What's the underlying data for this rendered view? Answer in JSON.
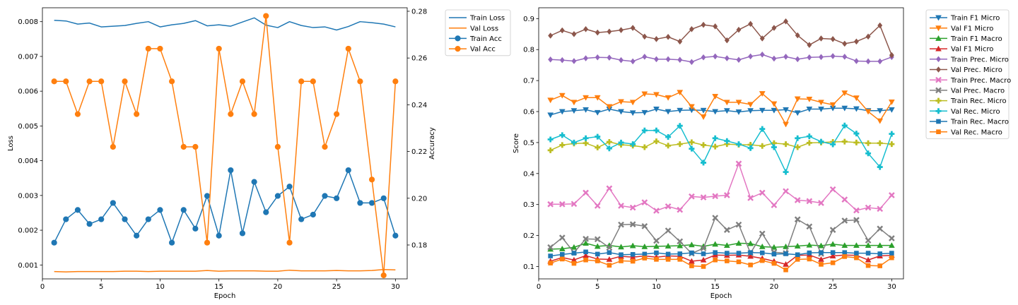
{
  "chart_data": [
    {
      "type": "line",
      "x": [
        1,
        2,
        3,
        4,
        5,
        6,
        7,
        8,
        9,
        10,
        11,
        12,
        13,
        14,
        15,
        16,
        17,
        18,
        19,
        20,
        21,
        22,
        23,
        24,
        25,
        26,
        27,
        28,
        29,
        30
      ],
      "xlabel": "Epoch",
      "xlim": [
        0,
        31
      ],
      "xticks": [
        0,
        5,
        10,
        15,
        20,
        25,
        30
      ],
      "ylabel": "Loss",
      "ylim": [
        0.0006,
        0.0084
      ],
      "yticks": [
        0.001,
        0.002,
        0.003,
        0.004,
        0.005,
        0.006,
        0.007,
        0.008
      ],
      "y2label": "Accuracy",
      "y2lim": [
        0.1655,
        0.2815
      ],
      "y2ticks": [
        0.18,
        0.2,
        0.22,
        0.24,
        0.26,
        0.28
      ],
      "legend_placement": "outside-right-top",
      "series": [
        {
          "name": "Train Loss",
          "axis": "left",
          "color": "#1f77b4",
          "marker": "none",
          "values": [
            0.00804,
            0.00802,
            0.00793,
            0.00796,
            0.00785,
            0.00787,
            0.00789,
            0.00795,
            0.008,
            0.00785,
            0.00791,
            0.00795,
            0.00803,
            0.00788,
            0.00791,
            0.00787,
            0.00799,
            0.00811,
            0.0079,
            0.00783,
            0.008,
            0.00789,
            0.00783,
            0.00785,
            0.00776,
            0.00786,
            0.008,
            0.00797,
            0.00793,
            0.00785
          ]
        },
        {
          "name": "Val Loss",
          "axis": "left",
          "color": "#ff7f0e",
          "marker": "none",
          "values": [
            0.00081,
            0.0008,
            0.00081,
            0.00081,
            0.00081,
            0.00081,
            0.00082,
            0.00082,
            0.00081,
            0.00082,
            0.00082,
            0.00082,
            0.00082,
            0.00084,
            0.00082,
            0.00083,
            0.00083,
            0.00083,
            0.00082,
            0.00082,
            0.00085,
            0.00083,
            0.00083,
            0.00083,
            0.00084,
            0.00083,
            0.00083,
            0.00084,
            0.00087,
            0.00086
          ]
        },
        {
          "name": "Train Acc",
          "axis": "right",
          "color": "#1f77b4",
          "marker": "circle",
          "values": [
            0.181,
            0.191,
            0.195,
            0.189,
            0.191,
            0.198,
            0.191,
            0.184,
            0.191,
            0.195,
            0.181,
            0.195,
            0.187,
            0.201,
            0.184,
            0.212,
            0.185,
            0.207,
            0.194,
            0.201,
            0.205,
            0.191,
            0.193,
            0.201,
            0.2,
            0.212,
            0.198,
            0.198,
            0.2,
            0.184
          ]
        },
        {
          "name": "Val Acc",
          "axis": "right",
          "color": "#ff7f0e",
          "marker": "circle",
          "values": [
            0.25,
            0.25,
            0.236,
            0.25,
            0.25,
            0.222,
            0.25,
            0.236,
            0.264,
            0.264,
            0.25,
            0.222,
            0.222,
            0.181,
            0.264,
            0.236,
            0.25,
            0.236,
            0.278,
            0.222,
            0.181,
            0.25,
            0.25,
            0.222,
            0.236,
            0.264,
            0.25,
            0.208,
            0.167,
            0.25
          ]
        }
      ]
    },
    {
      "type": "line",
      "x": [
        1,
        2,
        3,
        4,
        5,
        6,
        7,
        8,
        9,
        10,
        11,
        12,
        13,
        14,
        15,
        16,
        17,
        18,
        19,
        20,
        21,
        22,
        23,
        24,
        25,
        26,
        27,
        28,
        29,
        30
      ],
      "xlabel": "Epoch",
      "xlim": [
        0,
        31
      ],
      "xticks": [
        0,
        5,
        10,
        15,
        20,
        25,
        30
      ],
      "ylabel": "Score",
      "ylim": [
        0.06,
        0.935
      ],
      "yticks": [
        0.1,
        0.2,
        0.3,
        0.4,
        0.5,
        0.6,
        0.7,
        0.8,
        0.9
      ],
      "legend_placement": "outside-right-top",
      "series": [
        {
          "name": "Train F1 Micro",
          "color": "#1f77b4",
          "marker": "triangle-down",
          "values": [
            0.589,
            0.6,
            0.603,
            0.606,
            0.597,
            0.608,
            0.6,
            0.596,
            0.597,
            0.608,
            0.6,
            0.604,
            0.605,
            0.604,
            0.6,
            0.603,
            0.599,
            0.603,
            0.604,
            0.604,
            0.606,
            0.596,
            0.608,
            0.608,
            0.611,
            0.611,
            0.609,
            0.603,
            0.603,
            0.606
          ]
        },
        {
          "name": "Val F1 Micro",
          "color": "#ff7f0e",
          "marker": "triangle-down",
          "values": [
            0.637,
            0.652,
            0.63,
            0.645,
            0.645,
            0.616,
            0.632,
            0.63,
            0.657,
            0.655,
            0.645,
            0.662,
            0.616,
            0.583,
            0.649,
            0.63,
            0.63,
            0.623,
            0.658,
            0.625,
            0.559,
            0.641,
            0.64,
            0.63,
            0.622,
            0.66,
            0.644,
            0.6,
            0.57,
            0.631
          ]
        },
        {
          "name": "Train F1 Macro",
          "color": "#2ca02c",
          "marker": "triangle-up",
          "values": [
            0.156,
            0.157,
            0.162,
            0.175,
            0.165,
            0.168,
            0.163,
            0.167,
            0.164,
            0.165,
            0.166,
            0.167,
            0.17,
            0.165,
            0.172,
            0.168,
            0.175,
            0.174,
            0.164,
            0.162,
            0.164,
            0.166,
            0.169,
            0.167,
            0.172,
            0.168,
            0.168,
            0.168,
            0.168,
            0.168
          ]
        },
        {
          "name": "Val F1 Micro",
          "color": "#d62728",
          "marker": "triangle-up",
          "values": [
            0.117,
            0.129,
            0.121,
            0.135,
            0.124,
            0.123,
            0.133,
            0.13,
            0.134,
            0.13,
            0.134,
            0.133,
            0.117,
            0.121,
            0.137,
            0.136,
            0.137,
            0.133,
            0.126,
            0.117,
            0.107,
            0.136,
            0.137,
            0.123,
            0.134,
            0.137,
            0.136,
            0.121,
            0.134,
            0.136
          ]
        },
        {
          "name": "Train Prec. Micro",
          "color": "#9467bd",
          "marker": "diamond",
          "values": [
            0.768,
            0.766,
            0.763,
            0.772,
            0.775,
            0.774,
            0.766,
            0.762,
            0.777,
            0.769,
            0.769,
            0.767,
            0.76,
            0.775,
            0.778,
            0.772,
            0.767,
            0.778,
            0.784,
            0.771,
            0.777,
            0.769,
            0.775,
            0.776,
            0.779,
            0.777,
            0.763,
            0.762,
            0.762,
            0.776
          ]
        },
        {
          "name": "Val Prec. Micro",
          "color": "#8c564b",
          "marker": "diamond",
          "values": [
            0.845,
            0.862,
            0.85,
            0.866,
            0.855,
            0.858,
            0.863,
            0.87,
            0.842,
            0.834,
            0.841,
            0.826,
            0.866,
            0.88,
            0.875,
            0.83,
            0.864,
            0.883,
            0.836,
            0.87,
            0.891,
            0.846,
            0.815,
            0.836,
            0.834,
            0.819,
            0.826,
            0.842,
            0.878,
            0.782
          ]
        },
        {
          "name": "Train Prec. Macro",
          "color": "#e377c2",
          "marker": "x",
          "values": [
            0.301,
            0.301,
            0.302,
            0.338,
            0.296,
            0.352,
            0.296,
            0.29,
            0.307,
            0.28,
            0.294,
            0.283,
            0.326,
            0.323,
            0.327,
            0.33,
            0.432,
            0.321,
            0.338,
            0.298,
            0.343,
            0.314,
            0.311,
            0.305,
            0.349,
            0.316,
            0.281,
            0.29,
            0.286,
            0.33
          ]
        },
        {
          "name": "Val Prec. Macro",
          "color": "#7f7f7f",
          "marker": "x",
          "values": [
            0.162,
            0.193,
            0.145,
            0.189,
            0.188,
            0.161,
            0.235,
            0.236,
            0.23,
            0.183,
            0.216,
            0.181,
            0.142,
            0.159,
            0.257,
            0.218,
            0.235,
            0.143,
            0.206,
            0.146,
            0.143,
            0.252,
            0.229,
            0.141,
            0.218,
            0.248,
            0.25,
            0.184,
            0.222,
            0.191
          ]
        },
        {
          "name": "Train Rec. Micro",
          "color": "#bcbd22",
          "marker": "plus",
          "values": [
            0.475,
            0.492,
            0.497,
            0.498,
            0.484,
            0.502,
            0.493,
            0.49,
            0.485,
            0.504,
            0.49,
            0.495,
            0.501,
            0.492,
            0.487,
            0.495,
            0.493,
            0.493,
            0.489,
            0.498,
            0.495,
            0.485,
            0.499,
            0.5,
            0.502,
            0.503,
            0.5,
            0.498,
            0.498,
            0.495
          ]
        },
        {
          "name": "Val Rec. Micro",
          "color": "#17becf",
          "marker": "plus",
          "values": [
            0.51,
            0.524,
            0.5,
            0.514,
            0.519,
            0.481,
            0.5,
            0.495,
            0.539,
            0.539,
            0.518,
            0.554,
            0.48,
            0.435,
            0.514,
            0.505,
            0.495,
            0.482,
            0.544,
            0.485,
            0.405,
            0.514,
            0.52,
            0.503,
            0.494,
            0.555,
            0.529,
            0.465,
            0.421,
            0.528
          ]
        },
        {
          "name": "Train Rec. Macro",
          "color": "#1f77b4",
          "marker": "square",
          "values": [
            0.134,
            0.139,
            0.143,
            0.147,
            0.14,
            0.145,
            0.138,
            0.139,
            0.14,
            0.144,
            0.14,
            0.141,
            0.144,
            0.141,
            0.145,
            0.143,
            0.143,
            0.145,
            0.144,
            0.14,
            0.141,
            0.138,
            0.144,
            0.145,
            0.145,
            0.145,
            0.143,
            0.143,
            0.141,
            0.143
          ]
        },
        {
          "name": "Val Rec. Macro",
          "color": "#ff7f0e",
          "marker": "square",
          "values": [
            0.111,
            0.124,
            0.11,
            0.121,
            0.118,
            0.104,
            0.118,
            0.117,
            0.127,
            0.123,
            0.123,
            0.123,
            0.102,
            0.1,
            0.121,
            0.118,
            0.115,
            0.105,
            0.119,
            0.11,
            0.089,
            0.123,
            0.124,
            0.107,
            0.112,
            0.132,
            0.128,
            0.103,
            0.102,
            0.128
          ]
        }
      ]
    }
  ]
}
